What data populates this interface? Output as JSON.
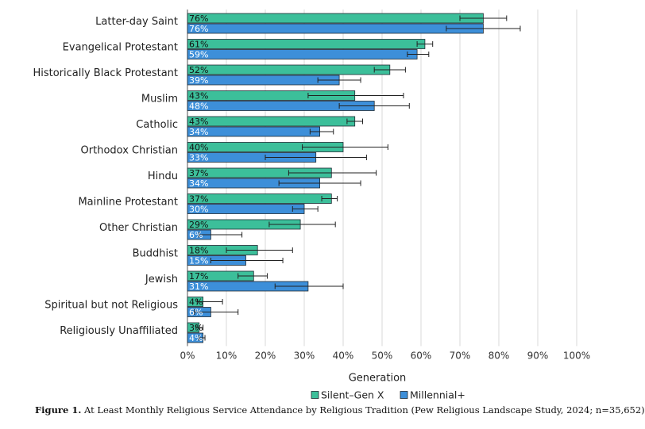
{
  "chart_data": {
    "type": "bar",
    "orientation": "horizontal",
    "categories": [
      "Latter-day Saint",
      "Evangelical Protestant",
      "Historically Black Protestant",
      "Muslim",
      "Catholic",
      "Orthodox Christian",
      "Hindu",
      "Mainline Protestant",
      "Other Christian",
      "Buddhist",
      "Jewish",
      "Spiritual but not Religious",
      "Religiously Unaffiliated"
    ],
    "series": [
      {
        "name": "Silent–Gen X",
        "color": "#3cbf9a",
        "values": [
          76,
          61,
          52,
          43,
          43,
          40,
          37,
          37,
          29,
          18,
          17,
          4,
          3
        ],
        "labels": [
          "76%",
          "61%",
          "52%",
          "43%",
          "43%",
          "40%",
          "37%",
          "37%",
          "29%",
          "18%",
          "17%",
          "4%",
          "3%"
        ],
        "err_low": [
          70,
          59,
          48,
          31,
          41,
          29.5,
          26,
          34.5,
          21,
          10,
          13,
          2.5,
          2.2
        ],
        "err_high": [
          82,
          63,
          56,
          55.5,
          45,
          51.5,
          48.5,
          38.5,
          38,
          27,
          20.5,
          9,
          4
        ]
      },
      {
        "name": "Millennial+",
        "color": "#3d8fd9",
        "values": [
          76,
          59,
          39,
          48,
          34,
          33,
          34,
          30,
          6,
          15,
          31,
          6,
          4
        ],
        "labels": [
          "76%",
          "59%",
          "39%",
          "48%",
          "34%",
          "33%",
          "34%",
          "30%",
          "6%",
          "15%",
          "31%",
          "6%",
          "4%"
        ],
        "err_low": [
          66.5,
          56.5,
          33.5,
          39,
          31.5,
          20,
          23.5,
          27,
          3,
          6,
          22.5,
          1.8,
          3
        ],
        "err_high": [
          85.5,
          62,
          44.5,
          57,
          37.5,
          46,
          44.5,
          33.5,
          14,
          24.5,
          40,
          13,
          4.5
        ]
      }
    ],
    "xlim": [
      0,
      100
    ],
    "xticks": [
      "0%",
      "10%",
      "20%",
      "30%",
      "40%",
      "50%",
      "60%",
      "70%",
      "80%",
      "90%",
      "100%"
    ],
    "xlabel": "Generation",
    "grid": "vertical",
    "legend_position": "bottom-center",
    "caption_label": "Figure 1.",
    "caption_text": "At Least Monthly Religious Service Attendance by Religious Tradition (Pew Religious Landscape Study, 2024; n=35,652)"
  }
}
